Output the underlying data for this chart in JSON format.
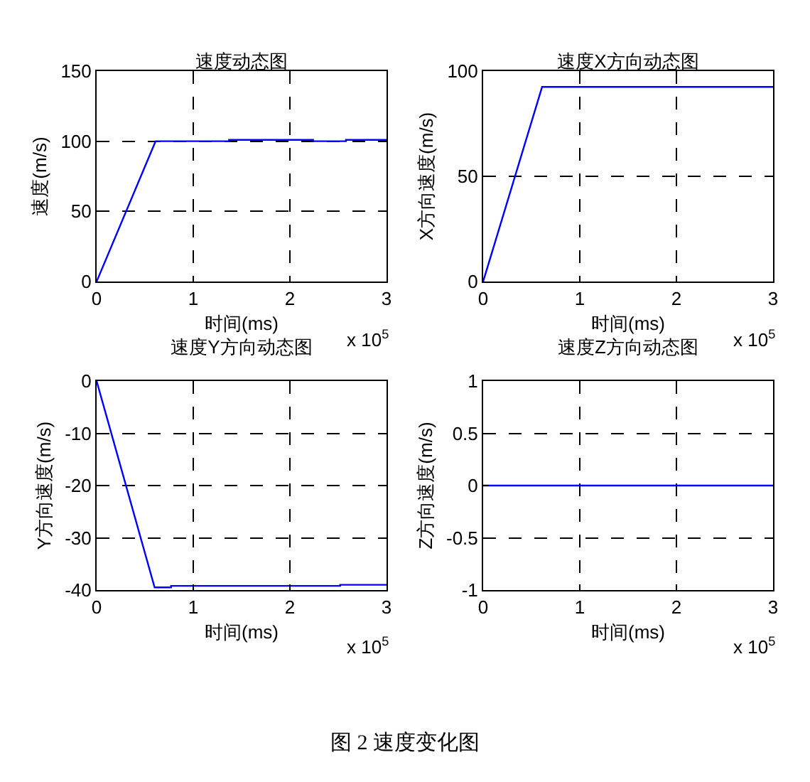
{
  "chart_data": [
    {
      "type": "line",
      "title": "速度动态图",
      "xlabel": "时间(ms)",
      "ylabel": "速度(m/s)",
      "x": [
        0,
        0.61,
        1.37,
        1.37,
        2.24,
        2.24,
        2.58,
        2.58,
        3
      ],
      "series": [
        {
          "color": "#0000ff",
          "values": [
            0,
            100,
            100,
            101,
            101,
            100,
            100,
            101,
            101
          ]
        }
      ],
      "xlim": [
        0,
        3
      ],
      "xticks": [
        0,
        1,
        2,
        3
      ],
      "ylim": [
        0,
        150
      ],
      "yticks": [
        0,
        50,
        100,
        150
      ],
      "grid": true,
      "annotations": [
        "x 10$^{5}$"
      ]
    },
    {
      "type": "line",
      "title": "速度X方向动态图",
      "xlabel": "时间(ms)",
      "ylabel": "X方向速度(m/s)",
      "x": [
        0,
        0.61,
        3
      ],
      "series": [
        {
          "color": "#0000ff",
          "values": [
            0,
            92.5,
            92.5
          ]
        }
      ],
      "xlim": [
        0,
        3
      ],
      "xticks": [
        0,
        1,
        2,
        3
      ],
      "ylim": [
        0,
        100
      ],
      "yticks": [
        0,
        50,
        100
      ],
      "grid": true,
      "annotations": [
        "x 10$^{5}$"
      ]
    },
    {
      "type": "line",
      "title": "速度Y方向动态图",
      "xlabel": "时间(ms)",
      "ylabel": "Y方向速度(m/s)",
      "x": [
        0,
        0.6,
        0.77,
        0.77,
        2.52,
        2.52,
        3
      ],
      "series": [
        {
          "color": "#0000ff",
          "values": [
            0,
            -39.5,
            -39.5,
            -39.2,
            -39.2,
            -39,
            -39
          ]
        }
      ],
      "xlim": [
        0,
        3
      ],
      "xticks": [
        0,
        1,
        2,
        3
      ],
      "ylim": [
        -40,
        0
      ],
      "yticks": [
        -40,
        -30,
        -20,
        -10,
        0
      ],
      "grid": true,
      "annotations": [
        "x 10$^{5}$"
      ]
    },
    {
      "type": "line",
      "title": "速度Z方向动态图",
      "xlabel": "时间(ms)",
      "ylabel": "Z方向速度(m/s)",
      "x": [
        0,
        3
      ],
      "series": [
        {
          "color": "#0000ff",
          "values": [
            0,
            0
          ]
        }
      ],
      "xlim": [
        0,
        3
      ],
      "xticks": [
        0,
        1,
        2,
        3
      ],
      "ylim": [
        -1,
        1
      ],
      "yticks": [
        -1,
        -0.5,
        0,
        0.5,
        1
      ],
      "grid": true,
      "annotations": [
        "x 10$^{5}$",
        "图 2 速度变化图"
      ]
    }
  ]
}
